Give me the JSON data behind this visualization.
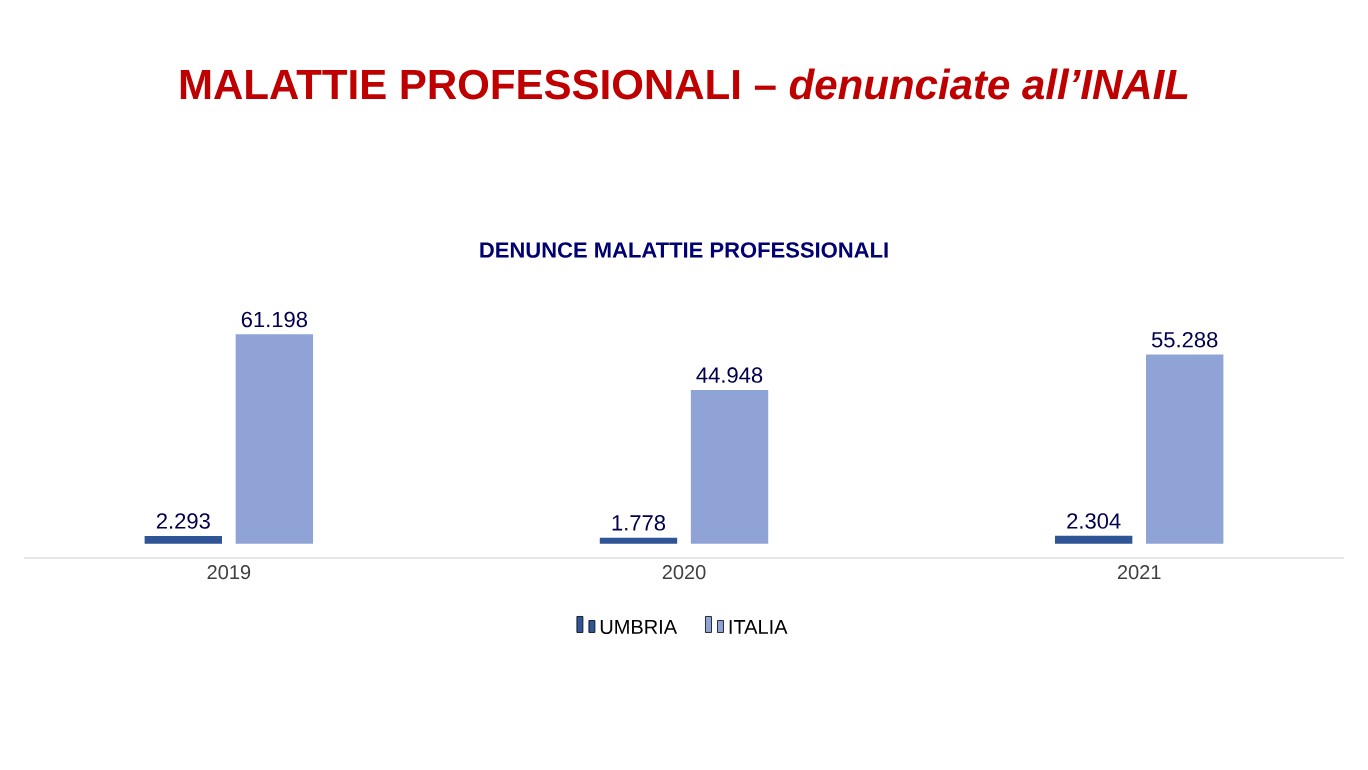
{
  "chart_data": {
    "type": "bar",
    "title": "MALATTIE PROFESSIONALI – *denunciate all’INAIL*",
    "subtitle": "DENUNCE  MALATTIE PROFESSIONALI",
    "categories": [
      "2019",
      "2020",
      "2021"
    ],
    "series": [
      {
        "name": "UMBRIA",
        "color": "#2f5597",
        "values": [
          2293,
          1778,
          2304
        ],
        "value_labels": [
          "2.293",
          "1.778",
          "2.304"
        ]
      },
      {
        "name": "ITALIA",
        "color": "#8fa3d6",
        "values": [
          61198,
          44948,
          55288
        ],
        "value_labels": [
          "61.198",
          "44.948",
          "55.288"
        ]
      }
    ],
    "legend": "bottom"
  }
}
